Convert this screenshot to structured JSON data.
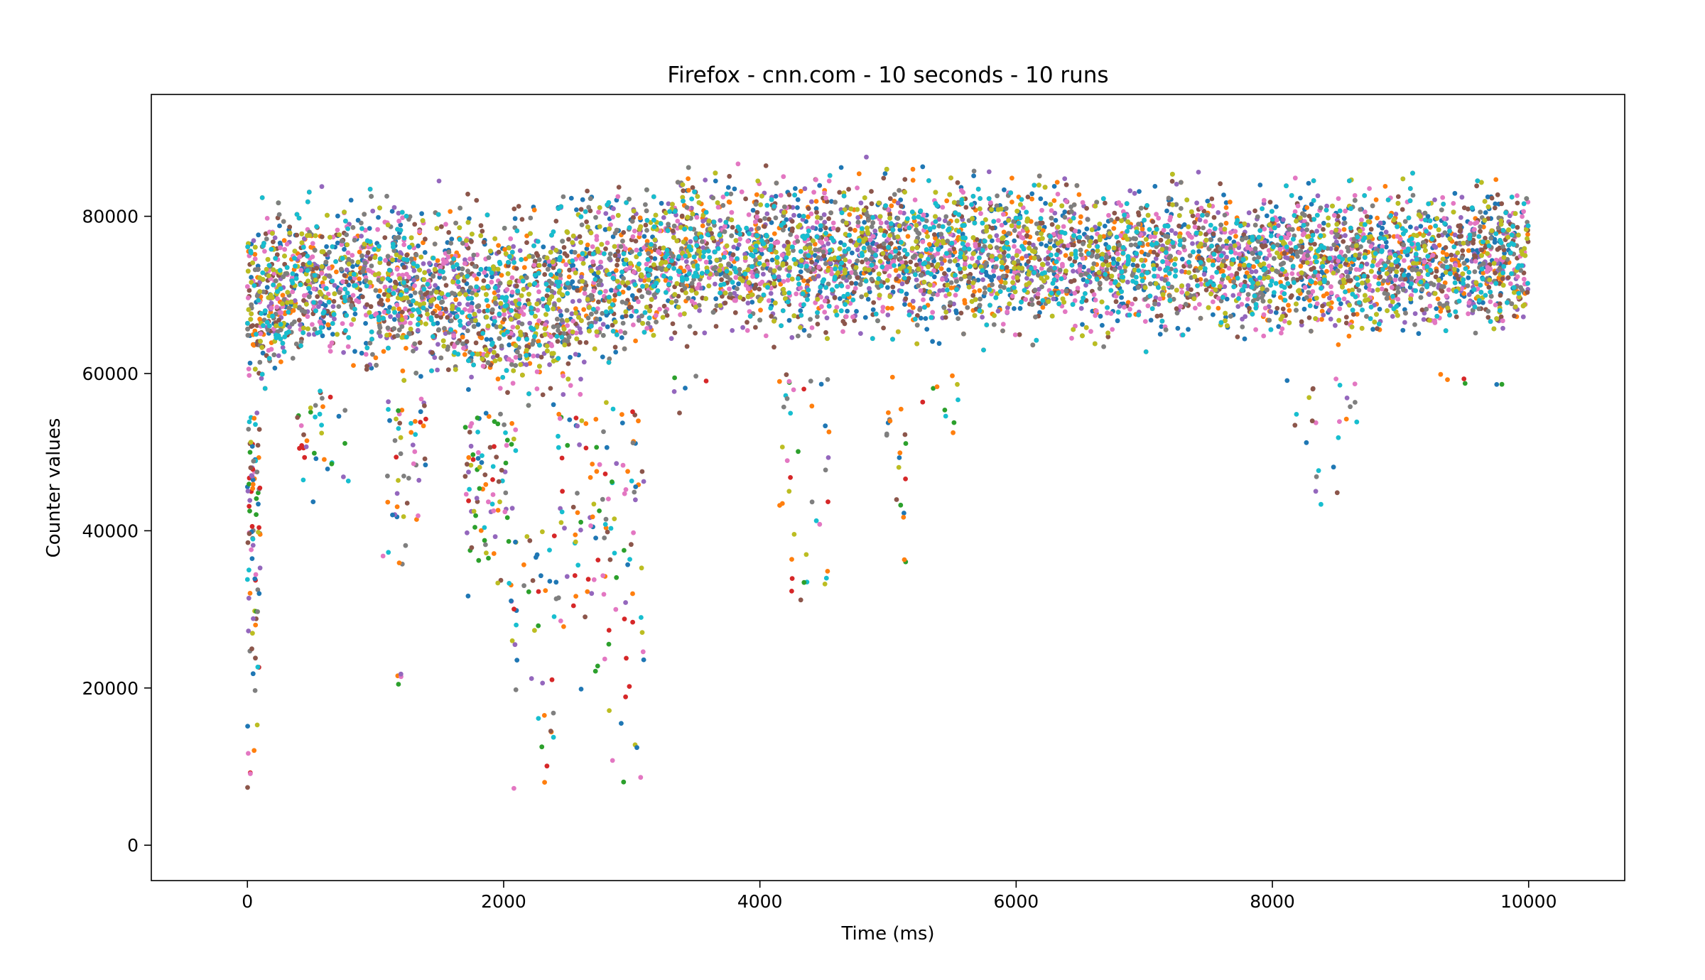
{
  "chart_data": {
    "type": "scatter",
    "title": "Firefox - cnn.com - 10 seconds - 10 runs",
    "xlabel": "Time (ms)",
    "ylabel": "Counter values",
    "xlim": [
      -750,
      10750
    ],
    "ylim": [
      -4500,
      95500
    ],
    "xticks": [
      0,
      2000,
      4000,
      6000,
      8000,
      10000
    ],
    "yticks": [
      0,
      20000,
      40000,
      60000,
      80000
    ],
    "grid": false,
    "legend": "none",
    "time_range_ms": [
      0,
      10000
    ],
    "series_colors": [
      "#1f77b4",
      "#ff7f0e",
      "#2ca02c",
      "#d62728",
      "#9467bd",
      "#8c564b",
      "#e377c2",
      "#7f7f7f",
      "#bcbd22",
      "#17becf"
    ],
    "density_profile": [
      {
        "x": 0,
        "lower": 55000,
        "upper": 84000
      },
      {
        "x": 500,
        "lower": 58000,
        "upper": 85000
      },
      {
        "x": 1000,
        "lower": 57000,
        "upper": 86000
      },
      {
        "x": 1500,
        "lower": 55000,
        "upper": 85000
      },
      {
        "x": 2000,
        "lower": 52000,
        "upper": 85000
      },
      {
        "x": 2500,
        "lower": 53000,
        "upper": 86000
      },
      {
        "x": 3000,
        "lower": 60000,
        "upper": 87000
      },
      {
        "x": 3500,
        "lower": 63000,
        "upper": 88000
      },
      {
        "x": 4000,
        "lower": 62000,
        "upper": 88000
      },
      {
        "x": 5000,
        "lower": 62000,
        "upper": 88000
      },
      {
        "x": 6000,
        "lower": 62000,
        "upper": 88000
      },
      {
        "x": 7000,
        "lower": 62000,
        "upper": 87000
      },
      {
        "x": 8000,
        "lower": 62000,
        "upper": 87000
      },
      {
        "x": 9000,
        "lower": 62000,
        "upper": 87000
      },
      {
        "x": 10000,
        "lower": 62000,
        "upper": 87000
      }
    ],
    "outlier_clusters": [
      {
        "x": [
          0,
          100
        ],
        "y": [
          0,
          55000
        ],
        "count": 90
      },
      {
        "x": [
          350,
          800
        ],
        "y": [
          40000,
          58000
        ],
        "count": 35
      },
      {
        "x": [
          1050,
          1400
        ],
        "y": [
          33000,
          57000
        ],
        "count": 50
      },
      {
        "x": [
          1150,
          1200
        ],
        "y": [
          17000,
          22000
        ],
        "count": 4
      },
      {
        "x": [
          1700,
          2100
        ],
        "y": [
          28000,
          55000
        ],
        "count": 90
      },
      {
        "x": [
          2050,
          2400
        ],
        "y": [
          0,
          40000
        ],
        "count": 40
      },
      {
        "x": [
          2400,
          2750
        ],
        "y": [
          16000,
          55000
        ],
        "count": 60
      },
      {
        "x": [
          2750,
          3100
        ],
        "y": [
          0,
          58000
        ],
        "count": 70
      },
      {
        "x": [
          3300,
          3650
        ],
        "y": [
          43000,
          60000
        ],
        "count": 6
      },
      {
        "x": [
          4150,
          4550
        ],
        "y": [
          28000,
          60000
        ],
        "count": 40
      },
      {
        "x": [
          4950,
          5150
        ],
        "y": [
          33000,
          60000
        ],
        "count": 20
      },
      {
        "x": [
          5250,
          5550
        ],
        "y": [
          46000,
          60000
        ],
        "count": 10
      },
      {
        "x": [
          8100,
          8700
        ],
        "y": [
          40000,
          60000
        ],
        "count": 25
      },
      {
        "x": [
          9250,
          9800
        ],
        "y": [
          55000,
          60000
        ],
        "count": 6
      }
    ]
  }
}
